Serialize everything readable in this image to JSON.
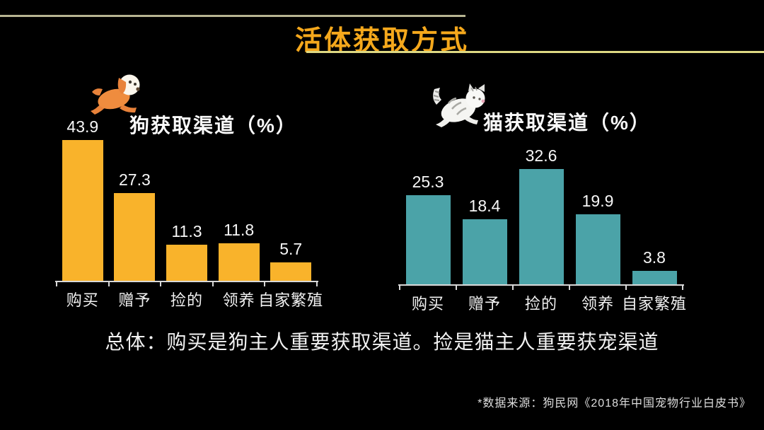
{
  "header": {
    "title": "活体获取方式"
  },
  "chart_data": [
    {
      "type": "bar",
      "id": "dog",
      "title": "狗获取渠道（%）",
      "icon": "dog-icon",
      "categories": [
        "购买",
        "赠予",
        "捡的",
        "领养",
        "自家繁殖"
      ],
      "values": [
        43.9,
        27.3,
        11.3,
        11.8,
        5.7
      ],
      "bar_color": "#F9B32B",
      "ylim": [
        0,
        48
      ],
      "grid": false,
      "value_labels": true,
      "legend": "none"
    },
    {
      "type": "bar",
      "id": "cat",
      "title": "猫获取渠道（%）",
      "icon": "cat-icon",
      "categories": [
        "购买",
        "赠予",
        "捡的",
        "领养",
        "自家繁殖"
      ],
      "values": [
        25.3,
        18.4,
        32.6,
        19.9,
        3.8
      ],
      "bar_color": "#4BA3A8",
      "ylim": [
        0,
        36
      ],
      "grid": false,
      "value_labels": true,
      "legend": "none"
    }
  ],
  "summary": "总体：购买是狗主人重要获取渠道。捡是猫主人重要获宠渠道",
  "source": "*数据来源：狗民网《2018年中国宠物行业白皮书》",
  "colors": {
    "background": "#000000",
    "title_accent": "#F5A81C",
    "top_rule": "#B7B492",
    "title_rule": "#DDD883",
    "axis": "#D8D8D8",
    "text": "#F5F5F5",
    "dog_bar": "#F9B32B",
    "cat_bar": "#4BA3A8",
    "source_text": "#DEDEDE"
  }
}
